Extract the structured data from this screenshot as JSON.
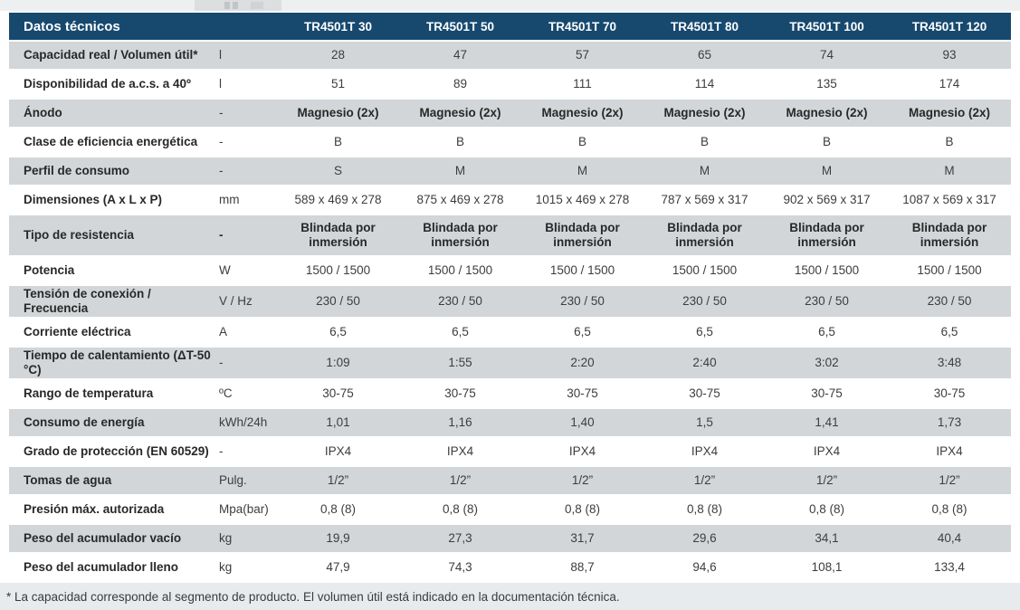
{
  "colors": {
    "header_bg": "#17496F",
    "header_text": "#FFFFFF",
    "row_alt_bg": "#D2D6D9",
    "row_bg": "#FFFFFF",
    "footnote_bg": "#E8EBED"
  },
  "page": {
    "footnote": "* La capacidad corresponde al segmento de producto. El volumen útil está indicado en la documentación técnica."
  },
  "table": {
    "title": "Datos técnicos",
    "unit_column_header": "",
    "columns": [
      "TR4501T 30",
      "TR4501T 50",
      "TR4501T 70",
      "TR4501T 80",
      "TR4501T 100",
      "TR4501T 120"
    ],
    "rows": [
      {
        "label": "Capacidad real / Volumen útil*",
        "unit": "l",
        "values": [
          "28",
          "47",
          "57",
          "65",
          "74",
          "93"
        ]
      },
      {
        "label": "Disponibilidad de a.c.s. a 40º",
        "unit": "l",
        "values": [
          "51",
          "89",
          "111",
          "114",
          "135",
          "174"
        ]
      },
      {
        "label": "Ánodo",
        "unit": "-",
        "bold_values": true,
        "values": [
          "Magnesio (2x)",
          "Magnesio (2x)",
          "Magnesio (2x)",
          "Magnesio (2x)",
          "Magnesio (2x)",
          "Magnesio (2x)"
        ]
      },
      {
        "label": "Clase de eficiencia energética",
        "unit": "-",
        "values": [
          "B",
          "B",
          "B",
          "B",
          "B",
          "B"
        ]
      },
      {
        "label": "Perfil de consumo",
        "unit": "-",
        "values": [
          "S",
          "M",
          "M",
          "M",
          "M",
          "M"
        ]
      },
      {
        "label": "Dimensiones (A x L x P)",
        "unit": "mm",
        "values": [
          "589 x 469 x 278",
          "875 x 469 x 278",
          "1015 x 469 x 278",
          "787 x 569 x 317",
          "902 x 569 x 317",
          "1087 x 569 x 317"
        ]
      },
      {
        "label": "Tipo de resistencia",
        "unit": "-",
        "unit_bold": true,
        "bold_values": true,
        "tall": true,
        "values": [
          "Blindada por inmersión",
          "Blindada por inmersión",
          "Blindada por inmersión",
          "Blindada por inmersión",
          "Blindada por inmersión",
          "Blindada por inmersión"
        ]
      },
      {
        "label": "Potencia",
        "unit": "W",
        "values": [
          "1500 / 1500",
          "1500 / 1500",
          "1500 / 1500",
          "1500 / 1500",
          "1500 / 1500",
          "1500 / 1500"
        ]
      },
      {
        "label": "Tensión de conexión / Frecuencia",
        "unit": "V / Hz",
        "values": [
          "230 / 50",
          "230 / 50",
          "230 / 50",
          "230 / 50",
          "230 / 50",
          "230 / 50"
        ]
      },
      {
        "label": "Corriente eléctrica",
        "unit": "A",
        "values": [
          "6,5",
          "6,5",
          "6,5",
          "6,5",
          "6,5",
          "6,5"
        ]
      },
      {
        "label": "Tiempo de calentamiento (ΔT-50 °C)",
        "unit": "-",
        "values": [
          "1:09",
          "1:55",
          "2:20",
          "2:40",
          "3:02",
          "3:48"
        ]
      },
      {
        "label": "Rango de temperatura",
        "unit": "ºC",
        "values": [
          "30-75",
          "30-75",
          "30-75",
          "30-75",
          "30-75",
          "30-75"
        ]
      },
      {
        "label": "Consumo de energía",
        "unit": "kWh/24h",
        "values": [
          "1,01",
          "1,16",
          "1,40",
          "1,5",
          "1,41",
          "1,73"
        ]
      },
      {
        "label": "Grado de protección (EN 60529)",
        "unit": "-",
        "values": [
          "IPX4",
          "IPX4",
          "IPX4",
          "IPX4",
          "IPX4",
          "IPX4"
        ]
      },
      {
        "label": "Tomas de agua",
        "unit": "Pulg.",
        "values": [
          "1/2”",
          "1/2”",
          "1/2”",
          "1/2”",
          "1/2”",
          "1/2”"
        ]
      },
      {
        "label": "Presión máx. autorizada",
        "unit": "Mpa(bar)",
        "values": [
          "0,8 (8)",
          "0,8 (8)",
          "0,8 (8)",
          "0,8 (8)",
          "0,8 (8)",
          "0,8 (8)"
        ]
      },
      {
        "label": "Peso del acumulador vacío",
        "unit": "kg",
        "values": [
          "19,9",
          "27,3",
          "31,7",
          "29,6",
          "34,1",
          "40,4"
        ]
      },
      {
        "label": "Peso del acumulador lleno",
        "unit": "kg",
        "values": [
          "47,9",
          "74,3",
          "88,7",
          "94,6",
          "108,1",
          "133,4"
        ]
      }
    ]
  }
}
